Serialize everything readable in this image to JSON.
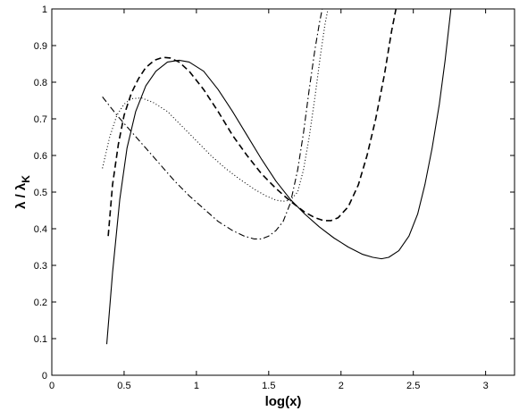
{
  "chart_data": {
    "type": "line",
    "xlabel": "log(x)",
    "ylabel_main": "λ / λ",
    "ylabel_sub": "K",
    "xlim": [
      0,
      3.2
    ],
    "ylim": [
      0,
      1
    ],
    "grid": false,
    "legend": "none",
    "x_ticks": [
      0,
      0.5,
      1,
      1.5,
      2,
      2.5,
      3
    ],
    "x_tick_labels": [
      "0",
      "0.5",
      "1",
      "1.5",
      "2",
      "2.5",
      "3"
    ],
    "y_ticks": [
      0,
      0.1,
      0.2,
      0.3,
      0.4,
      0.5,
      0.6,
      0.7,
      0.8,
      0.9,
      1
    ],
    "y_tick_labels": [
      "0",
      "0.1",
      "0.2",
      "0.3",
      "0.4",
      "0.5",
      "0.6",
      "0.7",
      "0.8",
      "0.9",
      "1"
    ],
    "series": [
      {
        "style": "solid",
        "color": "#000000",
        "points": [
          [
            0.38,
            0.085
          ],
          [
            0.42,
            0.28
          ],
          [
            0.47,
            0.48
          ],
          [
            0.52,
            0.62
          ],
          [
            0.58,
            0.72
          ],
          [
            0.65,
            0.79
          ],
          [
            0.72,
            0.83
          ],
          [
            0.8,
            0.855
          ],
          [
            0.88,
            0.86
          ],
          [
            0.95,
            0.855
          ],
          [
            1.05,
            0.83
          ],
          [
            1.15,
            0.78
          ],
          [
            1.25,
            0.72
          ],
          [
            1.35,
            0.655
          ],
          [
            1.45,
            0.59
          ],
          [
            1.55,
            0.53
          ],
          [
            1.65,
            0.48
          ],
          [
            1.75,
            0.44
          ],
          [
            1.85,
            0.405
          ],
          [
            1.95,
            0.375
          ],
          [
            2.05,
            0.35
          ],
          [
            2.15,
            0.33
          ],
          [
            2.22,
            0.322
          ],
          [
            2.28,
            0.318
          ],
          [
            2.33,
            0.322
          ],
          [
            2.4,
            0.34
          ],
          [
            2.47,
            0.38
          ],
          [
            2.53,
            0.44
          ],
          [
            2.58,
            0.52
          ],
          [
            2.63,
            0.62
          ],
          [
            2.68,
            0.74
          ],
          [
            2.72,
            0.86
          ],
          [
            2.76,
            1.0
          ]
        ]
      },
      {
        "style": "dashed",
        "color": "#000000",
        "points": [
          [
            0.39,
            0.38
          ],
          [
            0.42,
            0.52
          ],
          [
            0.46,
            0.63
          ],
          [
            0.5,
            0.71
          ],
          [
            0.55,
            0.77
          ],
          [
            0.6,
            0.81
          ],
          [
            0.65,
            0.84
          ],
          [
            0.71,
            0.86
          ],
          [
            0.77,
            0.868
          ],
          [
            0.82,
            0.866
          ],
          [
            0.88,
            0.855
          ],
          [
            0.95,
            0.83
          ],
          [
            1.05,
            0.78
          ],
          [
            1.15,
            0.72
          ],
          [
            1.25,
            0.655
          ],
          [
            1.35,
            0.6
          ],
          [
            1.45,
            0.55
          ],
          [
            1.55,
            0.51
          ],
          [
            1.65,
            0.475
          ],
          [
            1.75,
            0.445
          ],
          [
            1.82,
            0.43
          ],
          [
            1.88,
            0.422
          ],
          [
            1.93,
            0.422
          ],
          [
            1.98,
            0.43
          ],
          [
            2.05,
            0.46
          ],
          [
            2.12,
            0.52
          ],
          [
            2.18,
            0.6
          ],
          [
            2.24,
            0.7
          ],
          [
            2.3,
            0.82
          ],
          [
            2.35,
            0.94
          ],
          [
            2.38,
            1.0
          ]
        ]
      },
      {
        "style": "dotted",
        "color": "#000000",
        "points": [
          [
            0.35,
            0.565
          ],
          [
            0.4,
            0.65
          ],
          [
            0.45,
            0.71
          ],
          [
            0.5,
            0.74
          ],
          [
            0.55,
            0.755
          ],
          [
            0.62,
            0.757
          ],
          [
            0.7,
            0.745
          ],
          [
            0.8,
            0.72
          ],
          [
            0.9,
            0.68
          ],
          [
            1.0,
            0.64
          ],
          [
            1.1,
            0.6
          ],
          [
            1.2,
            0.565
          ],
          [
            1.3,
            0.535
          ],
          [
            1.4,
            0.508
          ],
          [
            1.48,
            0.49
          ],
          [
            1.55,
            0.478
          ],
          [
            1.6,
            0.475
          ],
          [
            1.65,
            0.478
          ],
          [
            1.7,
            0.5
          ],
          [
            1.74,
            0.56
          ],
          [
            1.78,
            0.65
          ],
          [
            1.82,
            0.76
          ],
          [
            1.86,
            0.88
          ],
          [
            1.89,
            0.96
          ],
          [
            1.91,
            1.0
          ]
        ]
      },
      {
        "style": "dashdot",
        "color": "#000000",
        "points": [
          [
            0.35,
            0.76
          ],
          [
            0.45,
            0.71
          ],
          [
            0.55,
            0.665
          ],
          [
            0.65,
            0.62
          ],
          [
            0.75,
            0.575
          ],
          [
            0.85,
            0.53
          ],
          [
            0.95,
            0.49
          ],
          [
            1.05,
            0.455
          ],
          [
            1.15,
            0.42
          ],
          [
            1.25,
            0.395
          ],
          [
            1.33,
            0.38
          ],
          [
            1.4,
            0.372
          ],
          [
            1.45,
            0.372
          ],
          [
            1.5,
            0.38
          ],
          [
            1.55,
            0.395
          ],
          [
            1.6,
            0.42
          ],
          [
            1.65,
            0.47
          ],
          [
            1.7,
            0.56
          ],
          [
            1.74,
            0.66
          ],
          [
            1.78,
            0.78
          ],
          [
            1.82,
            0.89
          ],
          [
            1.85,
            0.96
          ],
          [
            1.87,
            1.0
          ]
        ]
      }
    ]
  }
}
